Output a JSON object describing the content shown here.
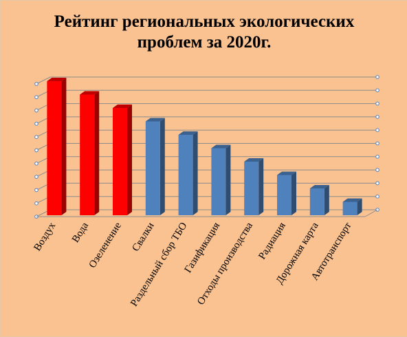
{
  "chart_data": {
    "type": "bar3d",
    "title": "Рейтинг региональных экологических проблем за 2020г.",
    "categories": [
      "Воздух",
      "Вода",
      "Озеленение",
      "Свалки",
      "Раздельный сбор ТБО",
      "Газификация",
      "Отходы производства",
      "Радиация",
      "Дорожная карта",
      "Автотранспорт"
    ],
    "values": [
      10,
      9,
      8,
      7,
      6,
      5,
      4,
      3,
      2,
      1
    ],
    "colors": [
      "#ff0000",
      "#ff0000",
      "#ff0000",
      "#4f81bd",
      "#4f81bd",
      "#4f81bd",
      "#4f81bd",
      "#4f81bd",
      "#4f81bd",
      "#4f81bd"
    ],
    "ylim": [
      0,
      10
    ],
    "yticks": [
      0,
      1,
      2,
      3,
      4,
      5,
      6,
      7,
      8,
      9,
      10
    ],
    "grid": true
  }
}
